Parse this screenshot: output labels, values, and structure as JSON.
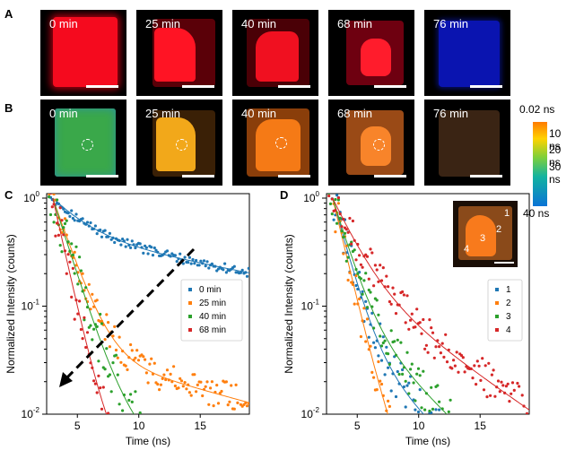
{
  "panels": {
    "a": "A",
    "b": "B",
    "c": "C",
    "d": "D"
  },
  "time_labels": [
    "0 min",
    "25 min",
    "40 min",
    "68 min",
    "76 min"
  ],
  "colorbar": {
    "labels": [
      "0.02 ns",
      "10 ns",
      "20 ns",
      "30 ns",
      "40 ns"
    ]
  },
  "colors": {
    "series1": "#1f77b4",
    "series2": "#ff7f0e",
    "series3": "#2ca02c",
    "series4": "#d62728"
  },
  "chart_data": [
    {
      "type": "scatter",
      "panel": "C",
      "xlabel": "Time (ns)",
      "ylabel": "Normalized Intensity (counts)",
      "xlim": [
        2.5,
        19
      ],
      "ylim": [
        0.01,
        1.1
      ],
      "yscale": "log",
      "xticks": [
        5,
        10,
        15
      ],
      "yticks": [
        "10^-2",
        "10^-1",
        "10^0"
      ],
      "legend_position": "right",
      "series": [
        {
          "name": "0 min",
          "color": "#1f77b4",
          "decay": [
            [
              0.45,
              20
            ],
            [
              0.55,
              2.5
            ]
          ],
          "scatter": 0.06
        },
        {
          "name": "25 min",
          "color": "#ff7f0e",
          "decay": [
            [
              0.04,
              14
            ],
            [
              0.96,
              1.3
            ]
          ],
          "scatter": 0.2
        },
        {
          "name": "40 min",
          "color": "#2ca02c",
          "decay": [
            [
              0.018,
              6
            ],
            [
              0.98,
              1.2
            ]
          ],
          "scatter": 0.35
        },
        {
          "name": "68 min",
          "color": "#d62728",
          "decay": [
            [
              0.01,
              5
            ],
            [
              0.99,
              0.85
            ]
          ],
          "scatter": 0.35
        }
      ],
      "annotation": "arrow"
    },
    {
      "type": "scatter",
      "panel": "D",
      "xlabel": "Time (ns)",
      "ylabel": "Normalized Intensity (counts)",
      "xlim": [
        2.5,
        19
      ],
      "ylim": [
        0.01,
        1.1
      ],
      "yscale": "log",
      "xticks": [
        5,
        10,
        15
      ],
      "yticks": [
        "10^-2",
        "10^-1",
        "10^0"
      ],
      "legend_position": "right",
      "series": [
        {
          "name": "1",
          "color": "#1f77b4",
          "decay": [
            [
              0.06,
              4
            ],
            [
              0.94,
              1.0
            ]
          ],
          "scatter": 0.3
        },
        {
          "name": "2",
          "color": "#ff7f0e",
          "decay": [
            [
              0.02,
              2.5
            ],
            [
              0.98,
              0.9
            ]
          ],
          "scatter": 0.3
        },
        {
          "name": "3",
          "color": "#2ca02c",
          "decay": [
            [
              0.1,
              4
            ],
            [
              0.9,
              1.1
            ]
          ],
          "scatter": 0.3
        },
        {
          "name": "4",
          "color": "#d62728",
          "decay": [
            [
              0.2,
              5.5
            ],
            [
              0.8,
              1.6
            ]
          ],
          "scatter": 0.25
        }
      ],
      "inset_labels": [
        "1",
        "2",
        "3",
        "4"
      ]
    }
  ]
}
